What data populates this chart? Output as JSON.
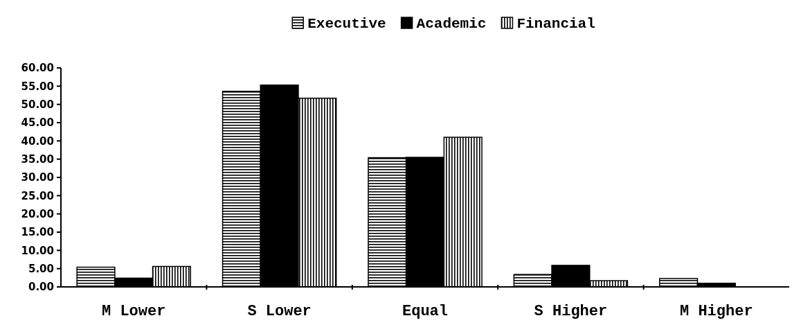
{
  "chart_data": {
    "type": "bar",
    "categories": [
      "M Lower",
      "S Lower",
      "Equal",
      "S Higher",
      "M Higher"
    ],
    "series": [
      {
        "name": "Executive",
        "color": "#000000",
        "values": [
          5.4,
          53.6,
          35.4,
          3.4,
          2.3
        ]
      },
      {
        "name": "Academic",
        "color": "#000000",
        "values": [
          2.4,
          55.3,
          35.5,
          5.9,
          1.0
        ]
      },
      {
        "name": "Financial",
        "color": "#000000",
        "values": [
          5.6,
          51.7,
          41.0,
          1.7,
          0
        ]
      }
    ],
    "ylim": [
      0,
      60
    ],
    "yticks": [
      {
        "value": 0,
        "label": "0.00"
      },
      {
        "value": 5,
        "label": "5.00"
      },
      {
        "value": 10,
        "label": "10.00"
      },
      {
        "value": 15,
        "label": "15.00"
      },
      {
        "value": 20,
        "label": "20.00"
      },
      {
        "value": 25,
        "label": "25.00"
      },
      {
        "value": 30,
        "label": "30.00"
      },
      {
        "value": 35,
        "label": "35.00"
      },
      {
        "value": 40,
        "label": "40.00"
      },
      {
        "value": 45,
        "label": "45.00"
      },
      {
        "value": 50,
        "label": "50.00"
      },
      {
        "value": 55,
        "label": "55.00"
      },
      {
        "value": 60,
        "label": "60.00"
      }
    ],
    "legend": "top",
    "grid": false
  }
}
